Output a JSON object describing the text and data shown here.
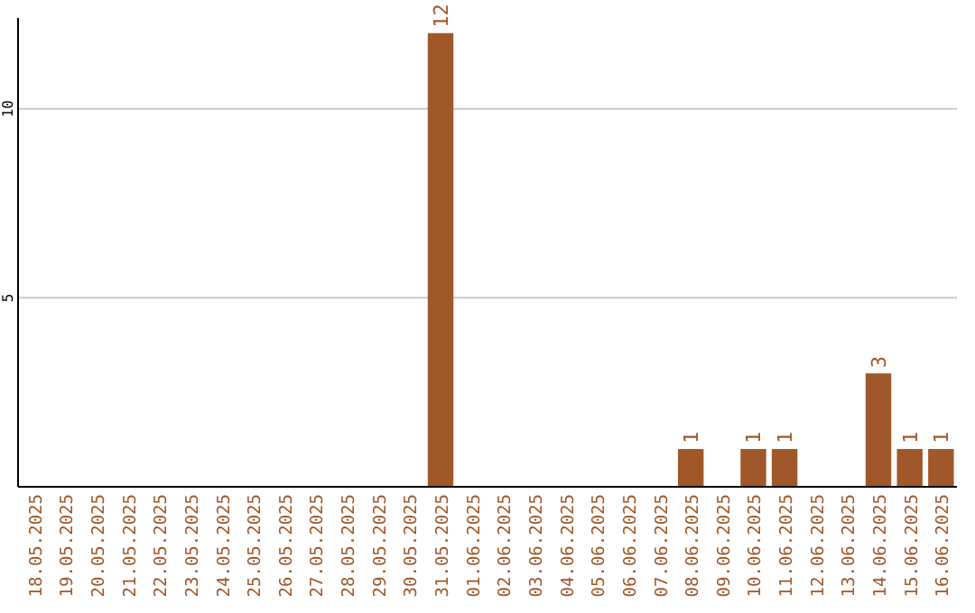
{
  "chart_data": {
    "type": "bar",
    "categories": [
      "18.05.2025",
      "19.05.2025",
      "20.05.2025",
      "21.05.2025",
      "22.05.2025",
      "23.05.2025",
      "24.05.2025",
      "25.05.2025",
      "26.05.2025",
      "27.05.2025",
      "28.05.2025",
      "29.05.2025",
      "30.05.2025",
      "31.05.2025",
      "01.06.2025",
      "02.06.2025",
      "03.06.2025",
      "04.06.2025",
      "05.06.2025",
      "06.06.2025",
      "07.06.2025",
      "08.06.2025",
      "09.06.2025",
      "10.06.2025",
      "11.06.2025",
      "12.06.2025",
      "13.06.2025",
      "14.06.2025",
      "15.06.2025",
      "16.06.2025"
    ],
    "values": [
      0,
      0,
      0,
      0,
      0,
      0,
      0,
      0,
      0,
      0,
      0,
      0,
      0,
      12,
      0,
      0,
      0,
      0,
      0,
      0,
      0,
      1,
      0,
      1,
      1,
      0,
      0,
      3,
      1,
      1
    ],
    "value_labels": [
      null,
      null,
      null,
      null,
      null,
      null,
      null,
      null,
      null,
      null,
      null,
      null,
      null,
      "12",
      null,
      null,
      null,
      null,
      null,
      null,
      null,
      "1",
      null,
      "1",
      "1",
      null,
      null,
      "3",
      "1",
      "1"
    ],
    "color": "#a0572a",
    "ylim": [
      0,
      12.4
    ],
    "yticks": [
      5,
      10
    ],
    "grid": "y"
  }
}
